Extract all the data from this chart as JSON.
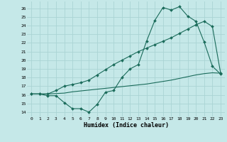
{
  "xlabel": "Humidex (Indice chaleur)",
  "xlim": [
    -0.5,
    23.5
  ],
  "ylim": [
    13.5,
    26.8
  ],
  "yticks": [
    14,
    15,
    16,
    17,
    18,
    19,
    20,
    21,
    22,
    23,
    24,
    25,
    26
  ],
  "xticks": [
    0,
    1,
    2,
    3,
    4,
    5,
    6,
    7,
    8,
    9,
    10,
    11,
    12,
    13,
    14,
    15,
    16,
    17,
    18,
    19,
    20,
    21,
    22,
    23
  ],
  "bg_color": "#c5e8e8",
  "line_color": "#1a6b5a",
  "grid_color": "#aad4d4",
  "line1_x": [
    0,
    1,
    2,
    3,
    4,
    5,
    6,
    7,
    8,
    9,
    10,
    11,
    12,
    13,
    14,
    15,
    16,
    17,
    18,
    19,
    20,
    21,
    22,
    23
  ],
  "line1_y": [
    16.1,
    16.1,
    15.9,
    15.9,
    15.1,
    14.4,
    14.4,
    14.0,
    14.9,
    16.3,
    16.5,
    18.0,
    19.0,
    19.5,
    22.2,
    24.6,
    26.1,
    25.8,
    26.2,
    25.1,
    24.5,
    22.1,
    19.3,
    18.4
  ],
  "line2_x": [
    0,
    1,
    2,
    3,
    4,
    5,
    6,
    7,
    8,
    9,
    10,
    11,
    12,
    13,
    14,
    15,
    16,
    17,
    18,
    19,
    20,
    21,
    22,
    23
  ],
  "line2_y": [
    16.1,
    16.1,
    16.1,
    16.15,
    16.2,
    16.35,
    16.45,
    16.55,
    16.65,
    16.75,
    16.85,
    16.95,
    17.05,
    17.15,
    17.25,
    17.4,
    17.55,
    17.7,
    17.9,
    18.1,
    18.3,
    18.45,
    18.55,
    18.5
  ],
  "line3_x": [
    0,
    1,
    2,
    3,
    4,
    5,
    6,
    7,
    8,
    9,
    10,
    11,
    12,
    13,
    14,
    15,
    16,
    17,
    18,
    19,
    20,
    21,
    22,
    23
  ],
  "line3_y": [
    16.1,
    16.1,
    16.1,
    16.5,
    17.0,
    17.2,
    17.4,
    17.7,
    18.3,
    18.9,
    19.5,
    20.0,
    20.5,
    21.0,
    21.4,
    21.8,
    22.2,
    22.6,
    23.1,
    23.6,
    24.1,
    24.5,
    23.9,
    18.5
  ]
}
